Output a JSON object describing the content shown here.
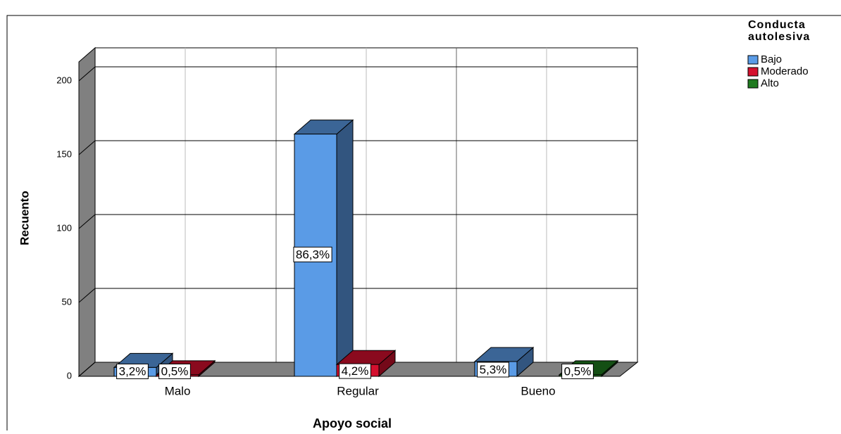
{
  "chart_data": {
    "type": "bar3d",
    "x_label": "Apoyo social",
    "y_label": "Recuento",
    "legend_title": "Conducta autolesiva",
    "legend": "right",
    "categories": [
      "Malo",
      "Regular",
      "Bueno"
    ],
    "series": [
      {
        "name": "Bajo",
        "color": "#5a9be6",
        "values": [
          6,
          164,
          10
        ],
        "value_labels": [
          "3,2%",
          "86,3%",
          "5,3%"
        ]
      },
      {
        "name": "Moderado",
        "color": "#d4102e",
        "values": [
          1,
          8,
          0
        ],
        "value_labels": [
          "0,5%",
          "4,2%",
          null
        ]
      },
      {
        "name": "Alto",
        "color": "#1f7a1f",
        "values": [
          0,
          0,
          1
        ],
        "value_labels": [
          null,
          null,
          "0,5%"
        ]
      }
    ],
    "ylim": [
      0,
      200
    ],
    "yticks": [
      0,
      50,
      100,
      150,
      200
    ],
    "grid": true
  }
}
